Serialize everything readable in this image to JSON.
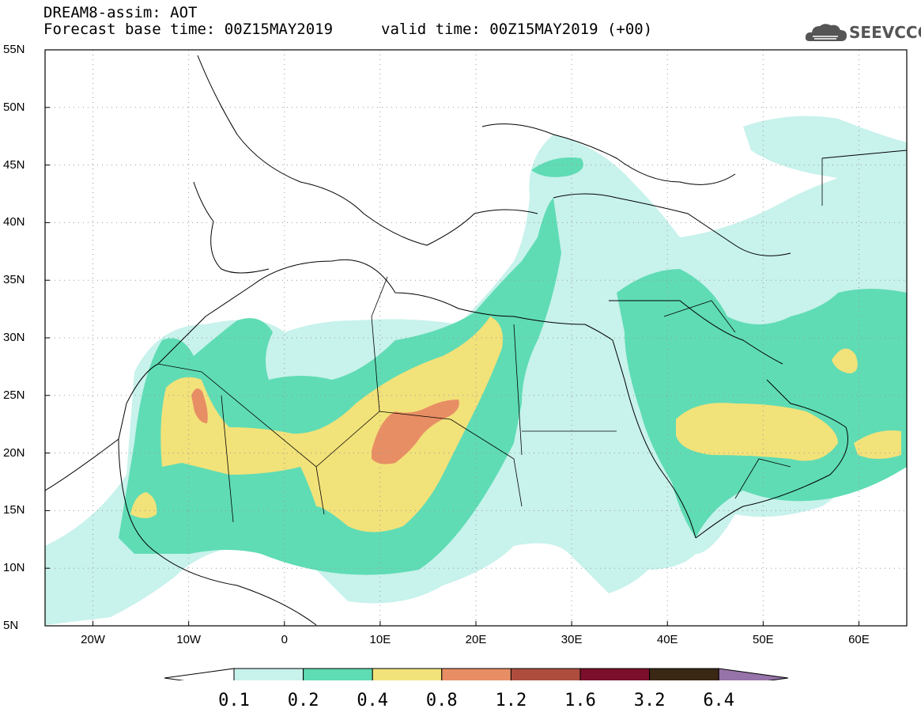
{
  "header": {
    "title": "DREAM8-assim: AOT",
    "base_time": "Forecast base time: 00Z15MAY2019",
    "valid_time": "valid time: 00Z15MAY2019 (+00)"
  },
  "logo": {
    "text": "SEEVCCC",
    "icon": "cloud-icon"
  },
  "map": {
    "projection": "lat-lon",
    "lon_range": [
      -25,
      65
    ],
    "lat_range": [
      5,
      55
    ],
    "lat_labels": [
      "55N",
      "50N",
      "45N",
      "40N",
      "35N",
      "30N",
      "25N",
      "20N",
      "15N",
      "10N",
      "5N"
    ],
    "lon_labels": [
      "20W",
      "10W",
      "0",
      "10E",
      "20E",
      "30E",
      "40E",
      "50E",
      "60E"
    ],
    "grid": true
  },
  "colorbar": {
    "labels": [
      "0.1",
      "0.2",
      "0.4",
      "0.8",
      "1.2",
      "1.6",
      "3.2",
      "6.4"
    ],
    "colors": [
      "#c8f2ec",
      "#5fdcb4",
      "#f2e27a",
      "#e88e64",
      "#ae4d3e",
      "#7b0f2c",
      "#3a2714",
      "#9673a8"
    ],
    "low_color": "#ffffff"
  }
}
